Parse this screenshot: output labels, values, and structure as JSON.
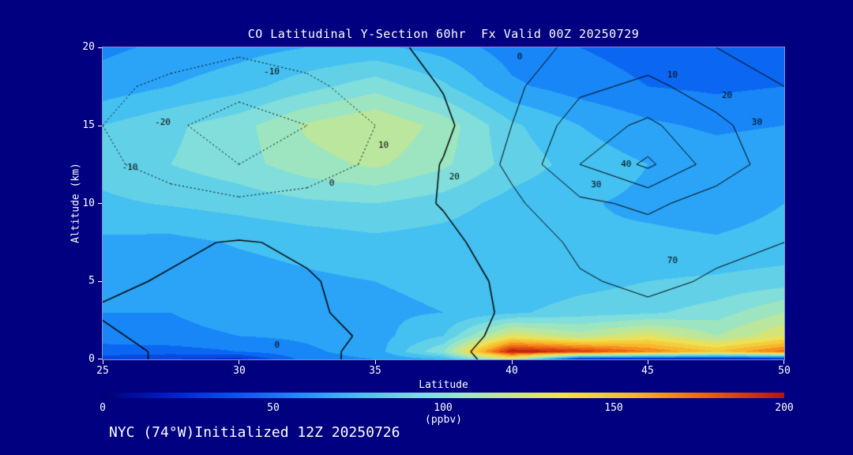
{
  "header": {
    "title": "CO Latitudinal Y-Section 60hr  Fx Valid 00Z 20250729"
  },
  "footer": {
    "text": "NYC (74°W)Initialized 12Z 20250726"
  },
  "colors": {
    "background": "#000080",
    "text": "#ffffff",
    "contour": "#000000"
  },
  "axes": {
    "x": {
      "label": "Latitude",
      "ticks": [
        "25",
        "30",
        "35",
        "40",
        "45",
        "50"
      ]
    },
    "y": {
      "label": "Altitude (km)",
      "ticks": [
        "20",
        "15",
        "10",
        "5",
        "0"
      ]
    }
  },
  "colorbar": {
    "label": "(ppbv)",
    "ticks": [
      "0",
      "50",
      "100",
      "150",
      "200"
    ]
  },
  "chart_data": {
    "type": "heatmap",
    "title": "CO Latitudinal Y-Section 60hr  Fx Valid 00Z 20250729",
    "xlabel": "Latitude",
    "ylabel": "Altitude (km)",
    "units": "ppbv",
    "xlim": [
      25,
      50
    ],
    "ylim": [
      0,
      20
    ],
    "zmin": 0,
    "zmax": 200,
    "band": 10,
    "x": [
      25,
      27.5,
      30,
      32.5,
      35,
      37.5,
      40,
      42.5,
      45,
      47.5,
      50
    ],
    "y": [
      0,
      0.5,
      1.5,
      3,
      5,
      7.5,
      10,
      12.5,
      15,
      17.5,
      20
    ],
    "co_ppbv": [
      [
        35,
        30,
        25,
        55,
        60,
        70,
        120,
        15,
        12,
        12,
        12
      ],
      [
        45,
        45,
        50,
        58,
        65,
        100,
        200,
        190,
        170,
        150,
        175
      ],
      [
        55,
        58,
        60,
        62,
        66,
        80,
        130,
        115,
        130,
        110,
        130
      ],
      [
        60,
        60,
        63,
        65,
        68,
        70,
        78,
        85,
        88,
        95,
        110
      ],
      [
        63,
        62,
        65,
        68,
        70,
        72,
        72,
        76,
        80,
        82,
        85
      ],
      [
        68,
        67,
        71,
        74,
        77,
        75,
        72,
        71,
        72,
        71,
        73
      ],
      [
        78,
        81,
        84,
        88,
        90,
        85,
        76,
        71,
        68,
        66,
        70
      ],
      [
        84,
        90,
        96,
        106,
        112,
        102,
        86,
        76,
        70,
        66,
        68
      ],
      [
        80,
        88,
        96,
        112,
        120,
        106,
        82,
        70,
        62,
        58,
        60
      ],
      [
        64,
        70,
        76,
        86,
        96,
        82,
        62,
        55,
        50,
        48,
        50
      ],
      [
        58,
        62,
        66,
        70,
        72,
        66,
        55,
        50,
        46,
        42,
        44
      ]
    ],
    "colormap_stops": [
      [
        0.0,
        "#000070"
      ],
      [
        0.1,
        "#0020c8"
      ],
      [
        0.22,
        "#0a64f0"
      ],
      [
        0.3,
        "#1e96fa"
      ],
      [
        0.38,
        "#46c3f0"
      ],
      [
        0.46,
        "#78dce1"
      ],
      [
        0.53,
        "#a0e6be"
      ],
      [
        0.6,
        "#c8e68c"
      ],
      [
        0.68,
        "#f0e150"
      ],
      [
        0.78,
        "#fab428"
      ],
      [
        0.88,
        "#f06414"
      ],
      [
        1.0,
        "#b41414"
      ]
    ],
    "overlay_contours": {
      "levels": [
        -30,
        -20,
        -10,
        0,
        10,
        20,
        30,
        40
      ],
      "values": [
        [
          -2,
          1,
          2,
          1,
          -1,
          -2,
          2,
          5,
          4,
          3,
          4
        ],
        [
          -2,
          1,
          2,
          1,
          -1,
          -2,
          3,
          6,
          5,
          4,
          5
        ],
        [
          -1,
          2,
          3,
          2,
          -1,
          -3,
          2,
          7,
          6,
          5,
          6
        ],
        [
          0.5,
          1,
          2,
          1,
          -2,
          -3,
          1,
          8,
          8,
          6,
          7
        ],
        [
          -1,
          0.5,
          1,
          0.5,
          -2,
          -4,
          2,
          9,
          12,
          9,
          8
        ],
        [
          -2,
          -1,
          0.5,
          -1,
          -3,
          -2,
          4,
          12,
          15,
          12,
          10
        ],
        [
          -4,
          -6,
          -8,
          -6,
          -4,
          0.5,
          8,
          18,
          22,
          16,
          12
        ],
        [
          -8,
          -14,
          -20,
          -16,
          -8,
          0.5,
          12,
          30,
          42,
          25,
          15
        ],
        [
          -10,
          -18,
          -26,
          -20,
          -10,
          -2,
          10,
          25,
          32,
          22,
          14
        ],
        [
          -8,
          -12,
          -16,
          -12,
          -6,
          0.5,
          8,
          18,
          22,
          16,
          10
        ],
        [
          -4,
          -6,
          -8,
          -6,
          -2,
          2,
          6,
          12,
          15,
          10,
          6
        ]
      ]
    },
    "annotations": [
      {
        "lat": 27.2,
        "alt": 15.2,
        "text": "-20"
      },
      {
        "lat": 26.0,
        "alt": 12.3,
        "text": "-10"
      },
      {
        "lat": 31.2,
        "alt": 18.4,
        "text": "-10"
      },
      {
        "lat": 40.3,
        "alt": 19.4,
        "text": "0"
      },
      {
        "lat": 45.9,
        "alt": 18.2,
        "text": "10"
      },
      {
        "lat": 47.9,
        "alt": 16.9,
        "text": "20"
      },
      {
        "lat": 49.0,
        "alt": 15.2,
        "text": "30"
      },
      {
        "lat": 44.2,
        "alt": 12.5,
        "text": "40"
      },
      {
        "lat": 43.1,
        "alt": 11.2,
        "text": "30"
      },
      {
        "lat": 37.9,
        "alt": 11.7,
        "text": "20"
      },
      {
        "lat": 35.3,
        "alt": 13.7,
        "text": "10"
      },
      {
        "lat": 33.4,
        "alt": 11.3,
        "text": "0"
      },
      {
        "lat": 45.9,
        "alt": 6.3,
        "text": "70"
      },
      {
        "lat": 31.4,
        "alt": 0.9,
        "text": "0"
      }
    ]
  }
}
